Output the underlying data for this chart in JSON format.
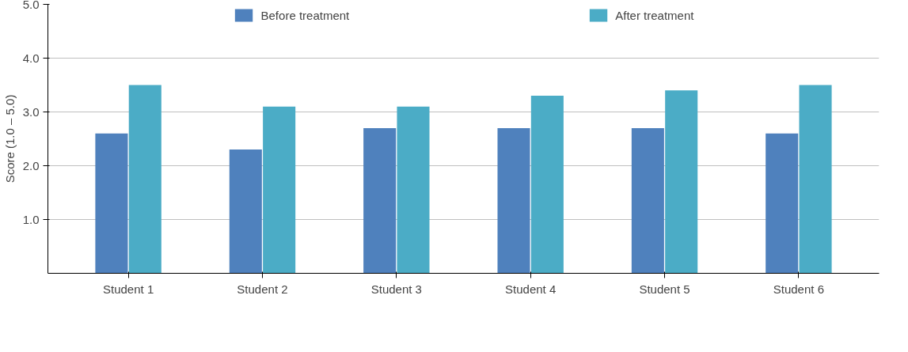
{
  "chart_data": {
    "type": "bar",
    "ylabel": "Score (1.0 – 5.0)",
    "categories": [
      "Student 1",
      "Student 2",
      "Student 3",
      "Student 4",
      "Student 5",
      "Student 6"
    ],
    "series": [
      {
        "name": "Before treatment",
        "color": "#4f81bd",
        "values": [
          2.6,
          2.3,
          2.7,
          2.7,
          2.7,
          2.6
        ]
      },
      {
        "name": "After treatment",
        "color": "#4bacc6",
        "values": [
          3.5,
          3.1,
          3.1,
          3.3,
          3.4,
          3.5
        ]
      }
    ],
    "ylim": [
      0,
      5
    ],
    "yticks": [
      {
        "value": 1,
        "label": "1.0"
      },
      {
        "value": 2,
        "label": "2.0"
      },
      {
        "value": 3,
        "label": "3.0"
      },
      {
        "value": 4,
        "label": "4.0"
      },
      {
        "value": 5,
        "label": "5.0"
      }
    ],
    "grid": "y",
    "legend": "top"
  }
}
